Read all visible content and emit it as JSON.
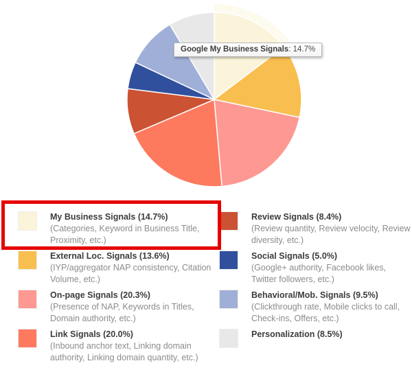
{
  "chart_data": {
    "type": "pie",
    "title": "",
    "categories": [
      "Google My Business Signals",
      "External Loc. Signals",
      "On-page Signals",
      "Link Signals",
      "Review Signals",
      "Social Signals",
      "Behavioral/Mob. Signals",
      "Personalization"
    ],
    "values": [
      14.7,
      13.6,
      20.3,
      20.0,
      8.4,
      5.0,
      9.5,
      8.5
    ],
    "colors": [
      "#FBF4DA",
      "#F8BE4F",
      "#FE9892",
      "#FD7A5F",
      "#CB5233",
      "#30509E",
      "#A0AFD7",
      "#E9E8E8"
    ],
    "start_angle_deg": 0,
    "direction": "clockwise",
    "legend_position": "bottom",
    "grid": false,
    "highlighted_slice": "Google My Business Signals"
  },
  "tooltip": {
    "label": "Google My Business Signals",
    "separator": ": ",
    "value": "14.7%"
  },
  "legend": {
    "columns": [
      {
        "items": [
          {
            "title": "My Business Signals (14.7%)",
            "desc": "(Categories, Keyword in Business Title, Proximity, etc.)",
            "color": "#FBF4DA"
          },
          {
            "title": "External Loc. Signals (13.6%)",
            "desc": "(IYP/aggregator NAP consistency, Citation Volume, etc.)",
            "color": "#F8BE4F"
          },
          {
            "title": "On-page Signals (20.3%)",
            "desc": "(Presence of NAP, Keywords in Titles, Domain authority, etc.)",
            "color": "#FE9892"
          },
          {
            "title": "Link Signals (20.0%)",
            "desc": "(Inbound anchor text, Linking domain authority, Linking domain quantity, etc.)",
            "color": "#FD7A5F"
          }
        ]
      },
      {
        "items": [
          {
            "title": "Review Signals (8.4%)",
            "desc": "(Review quantity, Review velocity, Review diversity, etc.)",
            "color": "#CB5233"
          },
          {
            "title": "Social Signals (5.0%)",
            "desc": "(Google+ authority, Facebook likes, Twitter followers, etc.)",
            "color": "#30509E"
          },
          {
            "title": "Behavioral/Mob. Signals (9.5%)",
            "desc": "(Clickthrough rate, Mobile clicks to call, Check-ins, Offers, etc.)",
            "color": "#A0AFD7"
          },
          {
            "title": "Personalization (8.5%)",
            "desc": "",
            "color": "#E9E8E8"
          }
        ]
      }
    ]
  },
  "annotation": {
    "highlight_box_color": "#E60000"
  }
}
